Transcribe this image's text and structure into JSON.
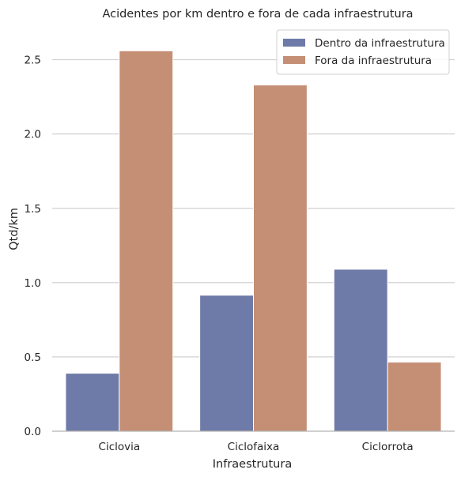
{
  "chart_data": {
    "type": "bar",
    "title": "Acidentes por km dentro e fora de cada infraestrutura",
    "xlabel": "Infraestrutura",
    "ylabel": "Qtd/km",
    "categories": [
      "Ciclovia",
      "Ciclofaixa",
      "Ciclorrota"
    ],
    "series": [
      {
        "name": "Dentro da infraestrutura",
        "values": [
          0.39,
          0.915,
          1.09
        ],
        "color": "#6e7aa7"
      },
      {
        "name": "Fora da infraestrutura",
        "values": [
          2.56,
          2.33,
          0.465
        ],
        "color": "#c58f76"
      }
    ],
    "ylim": [
      0,
      2.7
    ],
    "yticks": [
      0.0,
      0.5,
      1.0,
      1.5,
      2.0,
      2.5
    ],
    "ytick_labels": [
      "0.0",
      "0.5",
      "1.0",
      "1.5",
      "2.0",
      "2.5"
    ],
    "grid": "horizontal",
    "legend_position": "top-right"
  }
}
